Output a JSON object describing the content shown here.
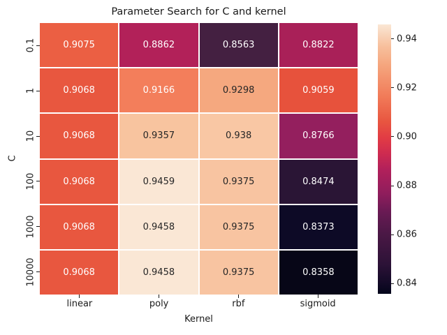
{
  "figure": {
    "title": "Parameter Search for C and kernel",
    "xlabel": "Kernel",
    "ylabel": "C"
  },
  "chart_data": {
    "type": "heatmap",
    "title": "Parameter Search for C and kernel",
    "xlabel": "Kernel",
    "ylabel": "C",
    "x_categories": [
      "linear",
      "poly",
      "rbf",
      "sigmoid"
    ],
    "y_categories": [
      "0.1",
      "1",
      "10",
      "100",
      "1000",
      "10000"
    ],
    "values": [
      [
        0.9075,
        0.8862,
        0.8563,
        0.8822
      ],
      [
        0.9068,
        0.9166,
        0.9298,
        0.9059
      ],
      [
        0.9068,
        0.9357,
        0.938,
        0.8766
      ],
      [
        0.9068,
        0.9459,
        0.9375,
        0.8474
      ],
      [
        0.9068,
        0.9458,
        0.9375,
        0.8373
      ],
      [
        0.9068,
        0.9458,
        0.9375,
        0.8358
      ]
    ],
    "cell_labels": [
      [
        "0.9075",
        "0.8862",
        "0.8563",
        "0.8822"
      ],
      [
        "0.9068",
        "0.9166",
        "0.9298",
        "0.9059"
      ],
      [
        "0.9068",
        "0.9357",
        "0.938",
        "0.8766"
      ],
      [
        "0.9068",
        "0.9459",
        "0.9375",
        "0.8474"
      ],
      [
        "0.9068",
        "0.9458",
        "0.9375",
        "0.8373"
      ],
      [
        "0.9068",
        "0.9458",
        "0.9375",
        "0.8358"
      ]
    ],
    "cell_colors": [
      [
        "#EB5F43",
        "#B22159",
        "#442041",
        "#A92058"
      ],
      [
        "#E8573F",
        "#F37E5B",
        "#F5A87F",
        "#E7523C"
      ],
      [
        "#E8573F",
        "#F8C49F",
        "#F9C7A4",
        "#941F5E"
      ],
      [
        "#E8573F",
        "#FAE7D5",
        "#F8C4A1",
        "#2A1535"
      ],
      [
        "#E8573F",
        "#FAE7D5",
        "#F8C4A1",
        "#0D0A26"
      ],
      [
        "#E8573F",
        "#FAE7D5",
        "#F8C4A1",
        "#070617"
      ]
    ],
    "cell_text_colors": [
      [
        "#FFFFFF",
        "#FFFFFF",
        "#FFFFFF",
        "#FFFFFF"
      ],
      [
        "#FFFFFF",
        "#FFFFFF",
        "#262626",
        "#FFFFFF"
      ],
      [
        "#FFFFFF",
        "#262626",
        "#262626",
        "#FFFFFF"
      ],
      [
        "#FFFFFF",
        "#262626",
        "#262626",
        "#FFFFFF"
      ],
      [
        "#FFFFFF",
        "#262626",
        "#262626",
        "#FFFFFF"
      ],
      [
        "#FFFFFF",
        "#262626",
        "#262626",
        "#FFFFFF"
      ]
    ],
    "colormap": "rocket",
    "colorbar": {
      "vmin": 0.8358,
      "vmax": 0.9459,
      "tick_labels": [
        "0.94",
        "0.92",
        "0.90",
        "0.88",
        "0.86",
        "0.84"
      ],
      "gradient_bottom_to_top": [
        {
          "at": 0,
          "color": "#03051A"
        },
        {
          "at": 4,
          "color": "#130A27"
        },
        {
          "at": 11,
          "color": "#2C1237"
        },
        {
          "at": 22,
          "color": "#4A1845"
        },
        {
          "at": 30,
          "color": "#671A53"
        },
        {
          "at": 37,
          "color": "#8E1D5C"
        },
        {
          "at": 46,
          "color": "#B1205B"
        },
        {
          "at": 52,
          "color": "#CE2B50"
        },
        {
          "at": 58,
          "color": "#E23C44"
        },
        {
          "at": 64,
          "color": "#E85640"
        },
        {
          "at": 73,
          "color": "#F17A58"
        },
        {
          "at": 85,
          "color": "#F5A67E"
        },
        {
          "at": 92,
          "color": "#F7C09D"
        },
        {
          "at": 100,
          "color": "#FAE7D5"
        }
      ]
    }
  }
}
